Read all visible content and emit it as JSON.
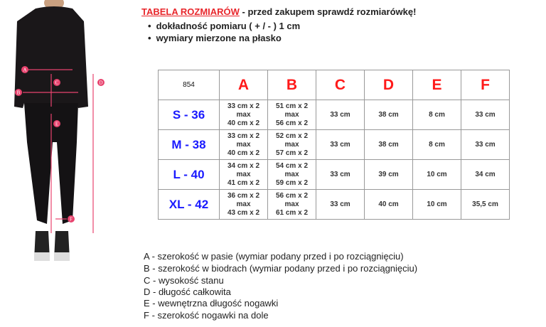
{
  "header": {
    "title_red": "TABELA ROZMIARÓW",
    "title_rest": " - przed zakupem sprawdź rozmiarówkę!",
    "bullets": [
      "dokładność pomiaru ( + / - ) 1 cm",
      "wymiary mierzone na płasko"
    ]
  },
  "table": {
    "code": "854",
    "columns": [
      "A",
      "B",
      "C",
      "D",
      "E",
      "F"
    ],
    "rows": [
      {
        "size": "S - 36",
        "A": [
          "33 cm x 2",
          "max",
          "40 cm x 2"
        ],
        "B": [
          "51 cm x 2",
          "max",
          "56 cm x 2"
        ],
        "C": "33 cm",
        "D": "38 cm",
        "E": "8 cm",
        "F": "33 cm"
      },
      {
        "size": "M - 38",
        "A": [
          "33 cm x 2",
          "max",
          "40 cm x 2"
        ],
        "B": [
          "52 cm x 2",
          "max",
          "57 cm x 2"
        ],
        "C": "33 cm",
        "D": "38 cm",
        "E": "8 cm",
        "F": "33 cm"
      },
      {
        "size": "L - 40",
        "A": [
          "34 cm x 2",
          "max",
          "41 cm x 2"
        ],
        "B": [
          "54 cm x 2",
          "max",
          "59 cm x 2"
        ],
        "C": "33 cm",
        "D": "39 cm",
        "E": "10 cm",
        "F": "34 cm"
      },
      {
        "size": "XL - 42",
        "A": [
          "36 cm x 2",
          "max",
          "43 cm x 2"
        ],
        "B": [
          "56 cm x 2",
          "max",
          "61 cm x 2"
        ],
        "C": "33 cm",
        "D": "40 cm",
        "E": "10 cm",
        "F": "35,5 cm"
      }
    ]
  },
  "legend": [
    {
      "key": "A",
      "text": " - szerokość w pasie (wymiar podany przed i po rozciągnięciu)"
    },
    {
      "key": "B",
      "text": " - szerokość w biodrach (wymiar podany przed i po rozciągnięciu)"
    },
    {
      "key": "C",
      "text": " - wysokość stanu"
    },
    {
      "key": "D",
      "text": " - długość całkowita"
    },
    {
      "key": "E",
      "text": " - wewnętrzna długość nogawki"
    },
    {
      "key": "F",
      "text": " - szerokość nogawki na dole"
    }
  ],
  "figure": {
    "markers": [
      "A",
      "B",
      "C",
      "D",
      "E",
      "F"
    ],
    "marker_color": "#e8436e"
  },
  "colors": {
    "title_red": "#e8262b",
    "column_red": "#ff1a1a",
    "size_blue": "#1a1aff"
  }
}
